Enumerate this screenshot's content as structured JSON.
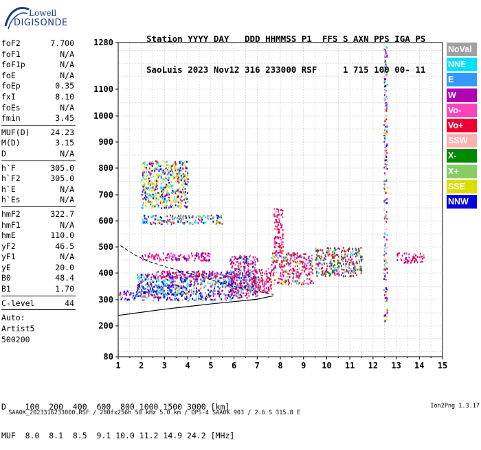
{
  "logo": {
    "line1": "Lowell",
    "line2": "DIGISONDE"
  },
  "header": {
    "labels": "Station YYYY DAY   DDD HHMMSS P1  FFS S AXN PPS IGA PS",
    "values": "SaoLuis 2023 Nov12 316 233000 RSF     1 715 100 00- 11"
  },
  "params": {
    "group1": [
      {
        "k": "foF2",
        "v": "7.700"
      },
      {
        "k": "foF1",
        "v": "N/A"
      },
      {
        "k": "foF1p",
        "v": "N/A"
      },
      {
        "k": "foE",
        "v": "N/A"
      },
      {
        "k": "foEp",
        "v": "0.35"
      },
      {
        "k": "fxI",
        "v": "8.10"
      },
      {
        "k": "foEs",
        "v": "N/A"
      },
      {
        "k": "fmin",
        "v": "3.45"
      }
    ],
    "group2": [
      {
        "k": "MUF(D)",
        "v": "24.23"
      },
      {
        "k": "M(D)",
        "v": "3.15"
      },
      {
        "k": "D",
        "v": "N/A"
      }
    ],
    "group3": [
      {
        "k": "h`F",
        "v": "305.0"
      },
      {
        "k": "h`F2",
        "v": "305.0"
      },
      {
        "k": "h`E",
        "v": "N/A"
      },
      {
        "k": "h`Es",
        "v": "N/A"
      }
    ],
    "group4": [
      {
        "k": "hmF2",
        "v": "322.7"
      },
      {
        "k": "hmF1",
        "v": "N/A"
      },
      {
        "k": "hmE",
        "v": "110.0"
      },
      {
        "k": "yF2",
        "v": "46.5"
      },
      {
        "k": "yF1",
        "v": "N/A"
      },
      {
        "k": "yE",
        "v": "20.0"
      },
      {
        "k": "B0",
        "v": "48.4"
      },
      {
        "k": "B1",
        "v": "1.70"
      }
    ],
    "group5": [
      {
        "k": "C-level",
        "v": "44"
      }
    ],
    "auto": [
      "Auto:",
      "Artist5",
      "500200"
    ]
  },
  "bottom": {
    "d_row": "D    100  200  400  600  800 1000 1500 3000 [km]",
    "muf_row": "MUF  8.0  8.1  8.5  9.1 10.0 11.2 14.9 24.2 [MHz]"
  },
  "footer": {
    "text": "SAA0K_2023316233000.RSF / 280fx256h 50 kHz 5.0 km / DPS-4 SAA0K 903 / 2.6 S 315.8 E",
    "version": "Ion2Png 1.3.17"
  },
  "legend": [
    {
      "label": "NoVal",
      "color": "#a0a0a0"
    },
    {
      "label": "NNE",
      "color": "#00e0ff"
    },
    {
      "label": "E",
      "color": "#3399ff"
    },
    {
      "label": "W",
      "color": "#b000b0"
    },
    {
      "label": "Vo-",
      "color": "#ff44bb"
    },
    {
      "label": "Vo+",
      "color": "#ee0033"
    },
    {
      "label": "SSW",
      "color": "#ffb0b0"
    },
    {
      "label": "X-",
      "color": "#008800"
    },
    {
      "label": "X+",
      "color": "#88cc66"
    },
    {
      "label": "SSE",
      "color": "#dddd00"
    },
    {
      "label": "NNW",
      "color": "#0000dd"
    }
  ],
  "chart_data": {
    "type": "scatter",
    "title": "",
    "xlabel": "",
    "ylabel": "",
    "xlim": [
      1,
      15
    ],
    "ylim": [
      80,
      1280
    ],
    "x_ticks": [
      1,
      2,
      3,
      4,
      5,
      6,
      7,
      8,
      9,
      10,
      11,
      12,
      13,
      14,
      15
    ],
    "y_ticks": [
      80,
      200,
      300,
      400,
      500,
      600,
      700,
      800,
      900,
      1000,
      1100,
      1280
    ],
    "y_scale": "ionogram-height",
    "grid": true,
    "legend_position": "right",
    "clusters": [
      {
        "x": [
          1.0,
          3.45
        ],
        "y": [
          300,
          335
        ],
        "color_weights": {
          "NNW": 4,
          "Vo-": 3,
          "W": 2,
          "E": 1,
          "NNE": 1,
          "SSE": 1
        }
      },
      {
        "x": [
          1.8,
          4.0
        ],
        "y": [
          320,
          360
        ],
        "color_weights": {
          "NNW": 4,
          "NNE": 2,
          "E": 2,
          "W": 1,
          "SSE": 1
        }
      },
      {
        "x": [
          3.4,
          6.0
        ],
        "y": [
          300,
          340
        ],
        "color_weights": {
          "NNW": 3,
          "Vo-": 2,
          "SSE": 1,
          "X+": 1,
          "NNE": 1,
          "W": 1
        }
      },
      {
        "x": [
          1.8,
          7.0
        ],
        "y": [
          345,
          400
        ],
        "color_weights": {
          "NNW": 3,
          "W": 2,
          "NNE": 2,
          "E": 2,
          "Vo+": 1,
          "SSE": 1
        }
      },
      {
        "x": [
          2.0,
          5.0
        ],
        "y": [
          450,
          480
        ],
        "color_weights": {
          "W": 3,
          "Vo-": 2,
          "NNW": 1,
          "Vo+": 1
        }
      },
      {
        "x": [
          2.5,
          6.2
        ],
        "y": [
          380,
          410
        ],
        "color_weights": {
          "W": 3,
          "Vo+": 2,
          "Vo-": 2,
          "NNW": 1
        }
      },
      {
        "x": [
          5.8,
          7.0
        ],
        "y": [
          310,
          470
        ],
        "color_weights": {
          "W": 2,
          "Vo-": 2,
          "Vo+": 2,
          "NNE": 1,
          "NNW": 1
        }
      },
      {
        "x": [
          6.8,
          7.6
        ],
        "y": [
          330,
          420
        ],
        "color_weights": {
          "Vo+": 3,
          "Vo-": 2,
          "W": 1
        }
      },
      {
        "x": [
          7.6,
          9.4
        ],
        "y": [
          360,
          480
        ],
        "color_weights": {
          "Vo+": 4,
          "Vo-": 3,
          "W": 2,
          "SSE": 1,
          "X+": 1,
          "NNE": 1
        }
      },
      {
        "x": [
          7.7,
          8.1
        ],
        "y": [
          480,
          650
        ],
        "color_weights": {
          "Vo+": 3,
          "Vo-": 2,
          "W": 1
        }
      },
      {
        "x": [
          2.0,
          5.5
        ],
        "y": [
          590,
          625
        ],
        "color_weights": {
          "SSE": 2,
          "NNE": 2,
          "NNW": 2,
          "W": 1,
          "Vo+": 1,
          "E": 1
        }
      },
      {
        "x": [
          2.0,
          4.0
        ],
        "y": [
          650,
          830
        ],
        "color_weights": {
          "SSE": 2,
          "W": 1,
          "NNE": 1,
          "NNW": 1
        }
      },
      {
        "x": [
          9.5,
          11.5
        ],
        "y": [
          390,
          500
        ],
        "color_weights": {
          "Vo+": 2,
          "X-": 1,
          "X+": 1,
          "NNE": 1,
          "W": 1
        }
      },
      {
        "x": [
          12.45,
          12.6
        ],
        "y": [
          220,
          1270
        ],
        "color_weights": {
          "W": 2,
          "SSW": 2,
          "NNE": 1,
          "E": 1,
          "NNW": 1,
          "SSE": 1,
          "Vo+": 1
        }
      },
      {
        "x": [
          13.0,
          14.2
        ],
        "y": [
          440,
          480
        ],
        "color_weights": {
          "W": 1,
          "Vo+": 1,
          "SSW": 1
        }
      }
    ],
    "profile_curve": {
      "x": [
        1.0,
        2.0,
        3.0,
        4.0,
        5.0,
        6.0,
        7.0,
        7.7
      ],
      "y": [
        240,
        252,
        264,
        274,
        284,
        293,
        302,
        315
      ]
    },
    "dashed_trace": {
      "x": [
        1.1,
        1.7,
        2.3,
        3.0,
        3.7,
        4.4,
        5.2,
        6.0,
        6.8,
        7.7
      ],
      "y": [
        505,
        470,
        445,
        425,
        408,
        390,
        370,
        350,
        335,
        320
      ]
    }
  }
}
